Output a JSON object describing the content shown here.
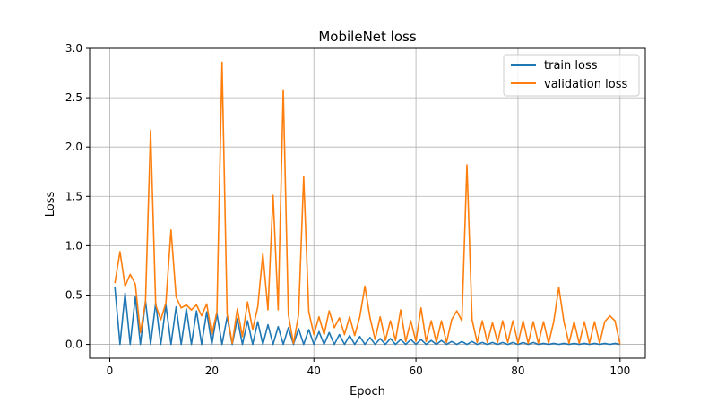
{
  "chart_data": {
    "type": "line",
    "title": "MobileNet loss",
    "xlabel": "Epoch",
    "ylabel": "Loss",
    "xlim": [
      -3.95,
      104.95
    ],
    "ylim": [
      -0.14,
      3.0
    ],
    "xticks": [
      0,
      20,
      40,
      60,
      80,
      100
    ],
    "yticks": [
      0.0,
      0.5,
      1.0,
      1.5,
      2.0,
      2.5,
      3.0
    ],
    "xtick_labels": [
      "0",
      "20",
      "40",
      "60",
      "80",
      "100"
    ],
    "ytick_labels": [
      "0.0",
      "0.5",
      "1.0",
      "1.5",
      "2.0",
      "2.5",
      "3.0"
    ],
    "grid": true,
    "legend_position": "top-right",
    "x": [
      1,
      2,
      3,
      4,
      5,
      6,
      7,
      8,
      9,
      10,
      11,
      12,
      13,
      14,
      15,
      16,
      17,
      18,
      19,
      20,
      21,
      22,
      23,
      24,
      25,
      26,
      27,
      28,
      29,
      30,
      31,
      32,
      33,
      34,
      35,
      36,
      37,
      38,
      39,
      40,
      41,
      42,
      43,
      44,
      45,
      46,
      47,
      48,
      49,
      50,
      51,
      52,
      53,
      54,
      55,
      56,
      57,
      58,
      59,
      60,
      61,
      62,
      63,
      64,
      65,
      66,
      67,
      68,
      69,
      70,
      71,
      72,
      73,
      74,
      75,
      76,
      77,
      78,
      79,
      80,
      81,
      82,
      83,
      84,
      85,
      86,
      87,
      88,
      89,
      90,
      91,
      92,
      93,
      94,
      95,
      96,
      97,
      98,
      99,
      100
    ],
    "series": [
      {
        "name": "train loss",
        "color": "#1f77b4",
        "values": [
          0.58,
          0.0,
          0.52,
          0.0,
          0.48,
          0.0,
          0.44,
          0.0,
          0.42,
          0.0,
          0.4,
          0.0,
          0.38,
          0.0,
          0.36,
          0.0,
          0.34,
          0.0,
          0.33,
          0.0,
          0.31,
          0.0,
          0.28,
          0.0,
          0.26,
          0.0,
          0.24,
          0.0,
          0.23,
          0.0,
          0.2,
          0.0,
          0.18,
          0.0,
          0.17,
          0.0,
          0.16,
          0.0,
          0.15,
          0.0,
          0.13,
          0.0,
          0.12,
          0.0,
          0.1,
          0.0,
          0.09,
          0.0,
          0.08,
          0.0,
          0.07,
          0.0,
          0.06,
          0.0,
          0.06,
          0.0,
          0.05,
          0.0,
          0.05,
          0.0,
          0.05,
          0.0,
          0.04,
          0.0,
          0.04,
          0.0,
          0.03,
          0.0,
          0.03,
          0.0,
          0.03,
          0.0,
          0.02,
          0.0,
          0.02,
          0.0,
          0.02,
          0.0,
          0.02,
          0.0,
          0.02,
          0.0,
          0.02,
          0.0,
          0.01,
          0.0,
          0.01,
          0.0,
          0.01,
          0.0,
          0.01,
          0.0,
          0.01,
          0.0,
          0.01,
          0.0,
          0.01,
          0.0,
          0.01,
          0.0
        ]
      },
      {
        "name": "validation loss",
        "color": "#ff7f0e",
        "values": [
          0.62,
          0.94,
          0.59,
          0.71,
          0.61,
          0.12,
          0.43,
          2.17,
          0.4,
          0.25,
          0.42,
          1.16,
          0.48,
          0.37,
          0.4,
          0.35,
          0.4,
          0.29,
          0.41,
          0.1,
          0.33,
          2.86,
          0.31,
          0.01,
          0.36,
          0.08,
          0.43,
          0.15,
          0.38,
          0.92,
          0.35,
          1.51,
          0.35,
          2.58,
          0.3,
          0.01,
          0.3,
          1.7,
          0.33,
          0.1,
          0.28,
          0.1,
          0.34,
          0.17,
          0.27,
          0.1,
          0.28,
          0.09,
          0.28,
          0.59,
          0.27,
          0.05,
          0.28,
          0.04,
          0.24,
          0.04,
          0.35,
          0.03,
          0.24,
          0.03,
          0.37,
          0.03,
          0.24,
          0.02,
          0.24,
          0.02,
          0.25,
          0.34,
          0.24,
          1.82,
          0.25,
          0.02,
          0.24,
          0.02,
          0.22,
          0.02,
          0.24,
          0.02,
          0.24,
          0.01,
          0.24,
          0.01,
          0.23,
          0.01,
          0.23,
          0.01,
          0.23,
          0.58,
          0.23,
          0.01,
          0.23,
          0.01,
          0.23,
          0.01,
          0.23,
          0.01,
          0.23,
          0.29,
          0.24,
          0.0
        ]
      }
    ]
  }
}
